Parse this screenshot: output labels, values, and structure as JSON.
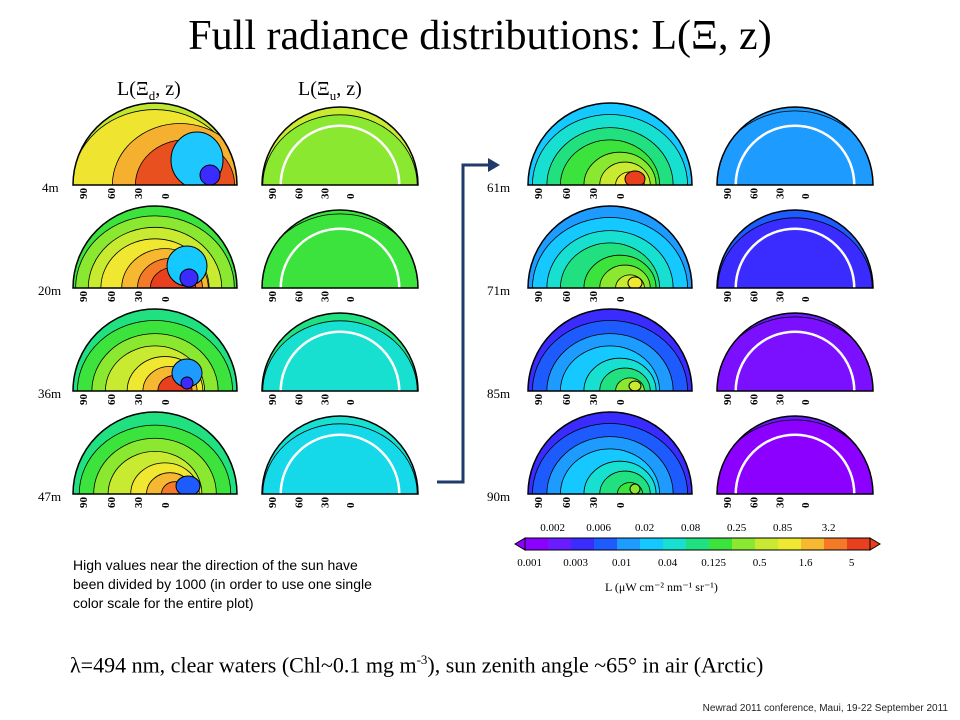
{
  "title": "Full radiance distributions: L(Ξ, z)",
  "column_labels": {
    "downward": {
      "text": "L(Ξ",
      "sub": "d",
      "tail": ", z)"
    },
    "upward": {
      "text": "L(Ξ",
      "sub": "u",
      "tail": ", z)"
    }
  },
  "left_depths": [
    "4m",
    "20m",
    "36m",
    "47m"
  ],
  "right_depths": [
    "61m",
    "71m",
    "85m",
    "90m"
  ],
  "zenith_ticks": [
    "90",
    "60",
    "30",
    "0"
  ],
  "colorscale": {
    "top_labels": [
      "0.002",
      "0.006",
      "0.02",
      "0.08",
      "0.25",
      "0.85",
      "3.2"
    ],
    "bottom_labels": [
      "0.001",
      "0.003",
      "0.01",
      "0.04",
      "0.125",
      "0.5",
      "1.6",
      "5"
    ],
    "unit_label": "L (μW cm⁻² nm⁻¹ sr⁻¹)",
    "colors": [
      "#8B00FF",
      "#6A1BFF",
      "#3A2BFF",
      "#1E5BFF",
      "#1E9BFF",
      "#15C8FF",
      "#18E0D0",
      "#20E080",
      "#3CE33C",
      "#8BE830",
      "#C8EA30",
      "#F0E830",
      "#F5B830",
      "#F57A28",
      "#E8401F"
    ]
  },
  "note": "High values near the direction of the sun have been divided by 1000 (in order to use one single color scale for the entire plot)",
  "bottom_text": {
    "lambda": "λ=494 nm, clear waters (Chl~0.1 mg m",
    "sup": "-3",
    "rest": "), sun zenith angle ~65° in air (Arctic)"
  },
  "footer": "Newrad 2011 conference, Maui, 19-22 September 2011"
}
